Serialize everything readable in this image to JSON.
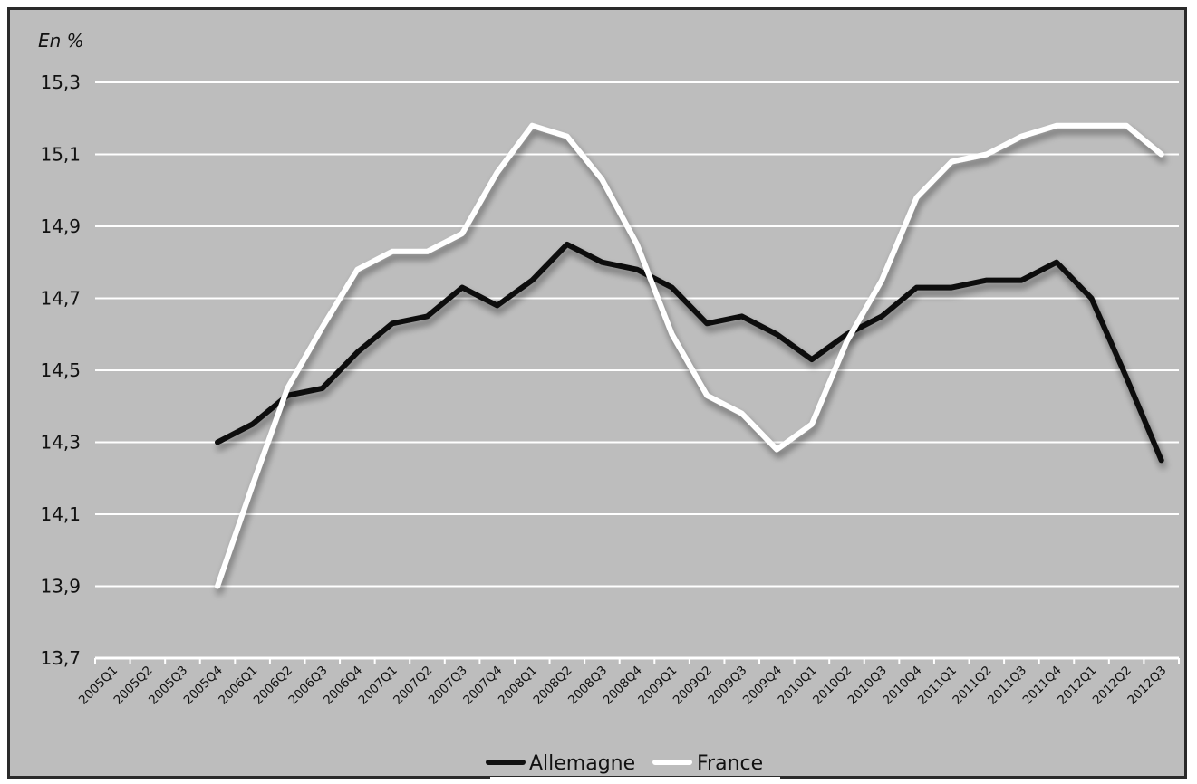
{
  "chart_data": {
    "type": "line",
    "unit_label": "En %",
    "x": [
      "2005Q1",
      "2005Q2",
      "2005Q3",
      "2005Q4",
      "2006Q1",
      "2006Q2",
      "2006Q3",
      "2006Q4",
      "2007Q1",
      "2007Q2",
      "2007Q3",
      "2007Q4",
      "2008Q1",
      "2008Q2",
      "2008Q3",
      "2008Q4",
      "2009Q1",
      "2009Q2",
      "2009Q3",
      "2009Q4",
      "2010Q1",
      "2010Q2",
      "2010Q3",
      "2010Q4",
      "2011Q1",
      "2011Q2",
      "2011Q3",
      "2011Q4",
      "2012Q1",
      "2012Q2",
      "2012Q3"
    ],
    "series": [
      {
        "name": "Allemagne",
        "color": "#111111",
        "values": [
          null,
          null,
          null,
          14.3,
          14.35,
          14.43,
          14.45,
          14.55,
          14.63,
          14.65,
          14.73,
          14.68,
          14.75,
          14.85,
          14.8,
          14.78,
          14.73,
          14.63,
          14.65,
          14.6,
          14.53,
          14.6,
          14.65,
          14.73,
          14.73,
          14.75,
          14.75,
          14.8,
          14.7,
          14.48,
          14.25
        ]
      },
      {
        "name": "France",
        "color": "#ffffff",
        "values": [
          null,
          null,
          null,
          13.9,
          14.18,
          14.45,
          14.62,
          14.78,
          14.83,
          14.83,
          14.88,
          15.05,
          15.18,
          15.15,
          15.03,
          14.85,
          14.6,
          14.43,
          14.38,
          14.28,
          14.35,
          14.58,
          14.75,
          14.98,
          15.08,
          15.1,
          15.15,
          15.18,
          15.18,
          15.18,
          15.1
        ]
      }
    ],
    "yticks": [
      "15,3",
      "15,1",
      "14,9",
      "14,7",
      "14,5",
      "14,3",
      "14,1",
      "13,9",
      "13,7"
    ],
    "ylim": [
      13.7,
      15.3
    ],
    "grid": true,
    "legend_position": "bottom-center"
  }
}
